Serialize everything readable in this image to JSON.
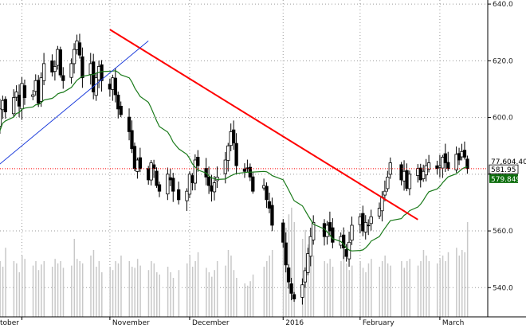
{
  "colors": {
    "up": "#ffffff",
    "down": "#000000",
    "candle_outline": "#000000",
    "sma": "#1a7a1a",
    "resistance": "#ff0000",
    "support": "#1f3fdc",
    "ref_line": "#ff0000",
    "volume": "#c8c8c8",
    "grid": "#9a9a9a"
  },
  "chart_data": {
    "type": "candlestick",
    "y_axis": {
      "range": [
        530,
        643
      ],
      "ticks": [
        540,
        560,
        580,
        600,
        620,
        640
      ],
      "tick_labels": [
        "540.0",
        "560.0",
        "580.0",
        "600.0",
        "620.0",
        "640.0"
      ],
      "position": "right"
    },
    "x_axis": {
      "labels": [
        "tober",
        "November",
        "December",
        "2016",
        "February",
        "March"
      ],
      "dates": [
        "2015-10-01",
        "2015-11-02",
        "2015-12-01",
        "2016-01-04",
        "2016-02-01",
        "2016-03-01"
      ]
    },
    "grid": true,
    "start_date": "2015-09-21",
    "end_date": "2016-03-24",
    "closes": [
      585,
      598,
      603,
      606,
      602,
      607,
      609,
      604,
      612,
      607,
      608,
      613,
      605,
      614,
      619,
      616,
      618,
      624,
      615,
      613,
      619,
      624,
      627,
      622,
      614,
      619,
      609,
      614,
      618,
      613,
      610,
      614,
      608,
      603,
      601,
      595,
      589,
      582,
      585,
      582,
      578,
      584,
      582,
      576,
      574,
      580,
      578,
      574,
      571,
      574,
      580,
      577,
      585,
      583,
      579,
      576,
      574,
      577,
      579,
      585,
      590,
      595,
      591,
      583,
      581,
      582,
      579,
      574,
      576,
      571,
      568,
      562,
      556,
      548,
      542,
      538,
      536,
      541,
      546,
      552,
      558,
      563,
      558,
      562,
      560,
      556,
      558,
      554,
      551,
      556,
      562,
      565,
      560,
      563,
      562,
      565,
      568,
      572,
      574,
      579,
      584,
      578,
      581,
      575,
      580,
      582,
      578,
      581,
      583,
      584,
      582,
      583,
      586,
      584,
      582,
      587,
      585,
      588,
      586,
      582
    ],
    "volume_scale": "relative, 0-1",
    "volumes": [
      0.55,
      0.6,
      0.5,
      0.45,
      0.62,
      0.5,
      0.48,
      0.4,
      0.55,
      0.52,
      0.46,
      0.5,
      0.42,
      0.47,
      0.5,
      0.45,
      0.52,
      0.48,
      0.5,
      0.44,
      0.46,
      0.7,
      0.52,
      0.5,
      0.48,
      0.55,
      0.6,
      0.45,
      0.5,
      0.4,
      0.45,
      0.42,
      0.5,
      0.48,
      0.55,
      0.5,
      0.45,
      0.44,
      0.52,
      0.46,
      0.42,
      0.5,
      0.48,
      0.4,
      0.38,
      0.45,
      0.4,
      0.35,
      0.42,
      0.48,
      0.55,
      0.45,
      0.5,
      0.58,
      0.44,
      0.4,
      0.36,
      0.42,
      0.5,
      0.46,
      0.6,
      0.55,
      0.42,
      0.35,
      0.3,
      0.28,
      0.32,
      0.38,
      0.45,
      0.5,
      0.55,
      0.6,
      0.72,
      0.8,
      0.92,
      0.98,
      0.85,
      0.7,
      0.78,
      0.65,
      0.6,
      0.55,
      0.5,
      0.48,
      0.52,
      0.45,
      0.5,
      0.55,
      0.48,
      0.42,
      0.46,
      0.5,
      0.44,
      0.4,
      0.48,
      0.52,
      0.45,
      0.5,
      0.55,
      0.48,
      0.46,
      0.5,
      0.44,
      0.5,
      0.52,
      0.46,
      0.5,
      0.6,
      0.55,
      0.5,
      0.48,
      0.52,
      0.55,
      0.5,
      0.58,
      0.62,
      0.55,
      0.6,
      0.58,
      0.85
    ],
    "indicators": [
      {
        "type": "sma",
        "period": 20
      }
    ],
    "trendlines": [
      {
        "role": "resistance",
        "from": [
          "2015-11-02",
          631
        ],
        "to": [
          "2016-02-22",
          564
        ]
      },
      {
        "role": "support",
        "from": [
          "2015-09-21",
          582
        ],
        "to": [
          "2015-11-16",
          627
        ]
      }
    ],
    "reference_line": {
      "value": 581.95
    },
    "price_tags": [
      {
        "label": "77,604.40",
        "value": 584.5,
        "style": "plain"
      },
      {
        "label": "581.95",
        "value": 581.6,
        "style": "dark"
      },
      {
        "label": "579.849",
        "value": 578.3,
        "style": "green"
      }
    ]
  }
}
